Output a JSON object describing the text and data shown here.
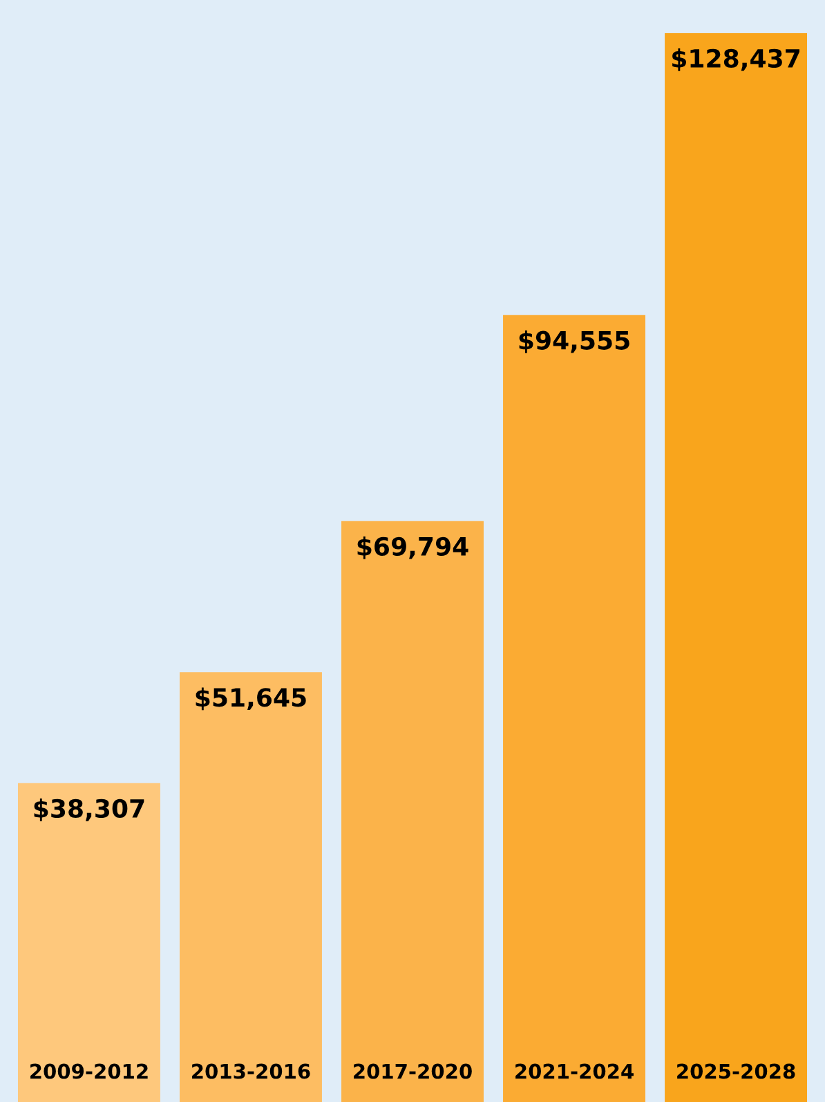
{
  "chart_data": {
    "type": "bar",
    "categories": [
      "2009-2012",
      "2013-2016",
      "2017-2020",
      "2021-2024",
      "2025-2028"
    ],
    "values": [
      38307,
      51645,
      69794,
      94555,
      128437
    ],
    "value_labels": [
      "$38,307",
      "$51,645",
      "$69,794",
      "$94,555",
      "$128,437"
    ],
    "colors": [
      "#fec87c",
      "#fdbd62",
      "#fbb34a",
      "#fbab33",
      "#f9a51c"
    ]
  }
}
